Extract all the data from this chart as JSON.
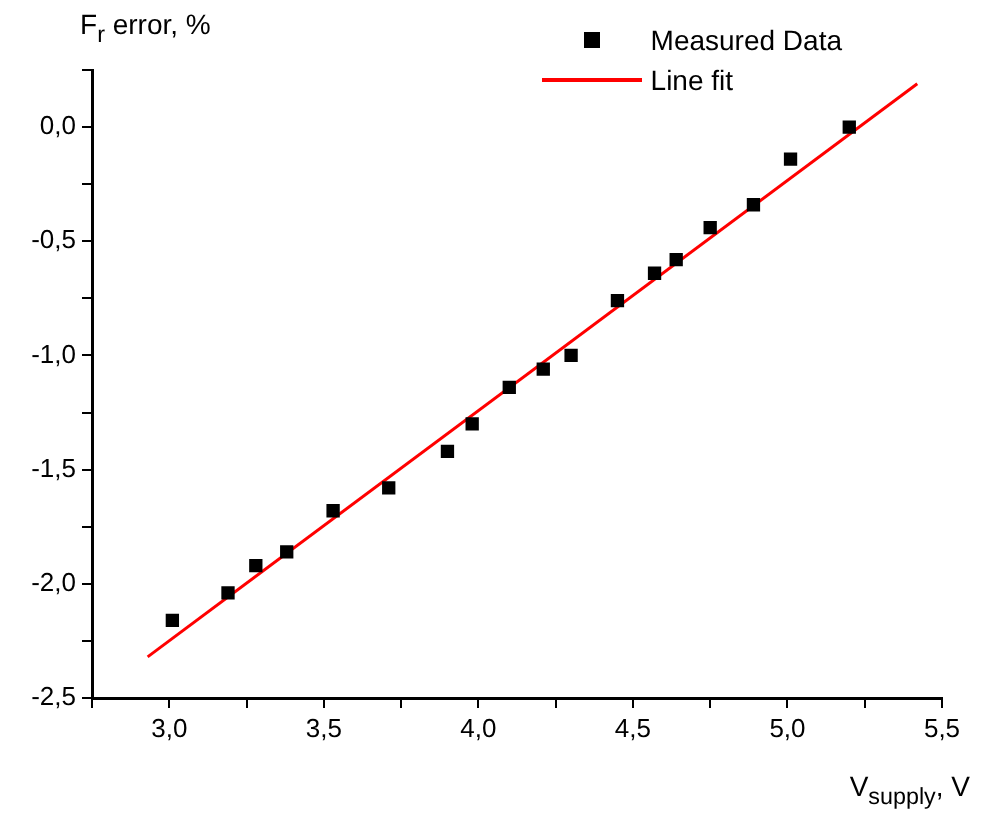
{
  "chart_data": {
    "type": "scatter",
    "xlabel": "V$_{supply}$, V",
    "ylabel": "F$_{r}$ error, %",
    "xlim": [
      2.75,
      5.5
    ],
    "ylim": [
      -2.5,
      0.25
    ],
    "xticks": [
      {
        "value": 2.75,
        "label": null
      },
      {
        "value": 3.0,
        "label": "3,0"
      },
      {
        "value": 3.25,
        "label": null
      },
      {
        "value": 3.5,
        "label": "3,5"
      },
      {
        "value": 3.75,
        "label": null
      },
      {
        "value": 4.0,
        "label": "4,0"
      },
      {
        "value": 4.25,
        "label": null
      },
      {
        "value": 4.5,
        "label": "4,5"
      },
      {
        "value": 4.75,
        "label": null
      },
      {
        "value": 5.0,
        "label": "5,0"
      },
      {
        "value": 5.25,
        "label": null
      },
      {
        "value": 5.5,
        "label": "5,5"
      }
    ],
    "yticks": [
      {
        "value": -2.5,
        "label": "-2,5"
      },
      {
        "value": -2.25,
        "label": null
      },
      {
        "value": -2.0,
        "label": "-2,0"
      },
      {
        "value": -1.75,
        "label": null
      },
      {
        "value": -1.5,
        "label": "-1,5"
      },
      {
        "value": -1.25,
        "label": null
      },
      {
        "value": -1.0,
        "label": "-1,0"
      },
      {
        "value": -0.75,
        "label": null
      },
      {
        "value": -0.5,
        "label": "-0,5"
      },
      {
        "value": -0.25,
        "label": null
      },
      {
        "value": 0.0,
        "label": "0,0"
      },
      {
        "value": 0.25,
        "label": null
      }
    ],
    "grid": false,
    "legend": "top right",
    "series": [
      {
        "name": "Measured Data",
        "type": "scatter",
        "color": "#000000",
        "marker": "square",
        "x": [
          3.01,
          3.19,
          3.28,
          3.38,
          3.53,
          3.71,
          3.9,
          3.98,
          4.1,
          4.21,
          4.3,
          4.45,
          4.57,
          4.64,
          4.75,
          4.89,
          5.01,
          5.2
        ],
        "values": [
          -2.16,
          -2.04,
          -1.92,
          -1.86,
          -1.68,
          -1.58,
          -1.42,
          -1.3,
          -1.14,
          -1.06,
          -1.0,
          -0.76,
          -0.64,
          -0.58,
          -0.44,
          -0.34,
          -0.14,
          0.0
        ]
      },
      {
        "name": "Line fit",
        "type": "line",
        "color": "#ff0000",
        "marker": "none",
        "line_style": "solid",
        "x": [
          2.93,
          5.42
        ],
        "values": [
          -2.32,
          0.19
        ]
      }
    ]
  }
}
